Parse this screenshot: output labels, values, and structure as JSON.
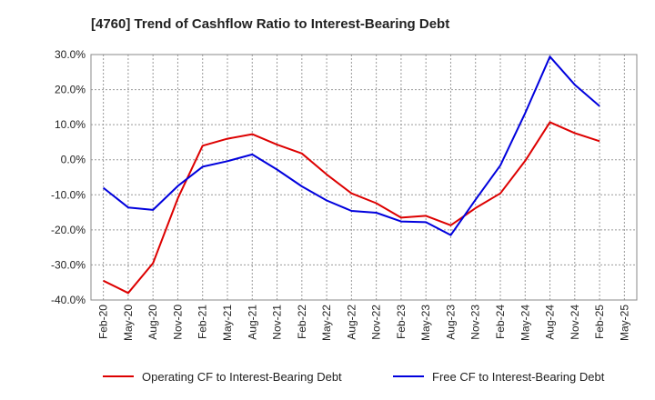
{
  "chart_data": {
    "type": "line",
    "title": "[4760]  Trend of Cashflow Ratio to Interest-Bearing Debt",
    "xlabel": "",
    "ylabel": "",
    "categories": [
      "Feb-20",
      "May-20",
      "Aug-20",
      "Nov-20",
      "Feb-21",
      "May-21",
      "Aug-21",
      "Nov-21",
      "Feb-22",
      "May-22",
      "Aug-22",
      "Nov-22",
      "Feb-23",
      "May-23",
      "Aug-23",
      "Nov-23",
      "Feb-24",
      "May-24",
      "Aug-24",
      "Nov-24",
      "Feb-25",
      "May-25"
    ],
    "ylim": [
      -40,
      30
    ],
    "yticks": [
      "30.0%",
      "20.0%",
      "10.0%",
      "0.0%",
      "-10.0%",
      "-20.0%",
      "-30.0%",
      "-40.0%"
    ],
    "ytick_values": [
      30,
      20,
      10,
      0,
      -10,
      -20,
      -30,
      -40
    ],
    "grid": true,
    "legend_position": "bottom",
    "series": [
      {
        "name": "Operating CF to Interest-Bearing Debt",
        "color": "#dd0000",
        "values": [
          -34.5,
          -38,
          -29.5,
          -11,
          4,
          6,
          7.3,
          4.3,
          1.8,
          -4.2,
          -9.6,
          -12.4,
          -16.5,
          -16,
          -18.7,
          -13.8,
          -9.6,
          -0.3,
          10.7,
          7.6,
          5.3,
          null
        ]
      },
      {
        "name": "Free CF to Interest-Bearing Debt",
        "color": "#0000dd",
        "values": [
          -8,
          -13.6,
          -14.3,
          -7.5,
          -2,
          -0.4,
          1.5,
          -2.8,
          -7.6,
          -11.6,
          -14.6,
          -15.1,
          -17.6,
          -17.8,
          -21.5,
          -11.4,
          -1.6,
          13.3,
          29.4,
          21.4,
          15.3,
          null
        ]
      }
    ]
  }
}
